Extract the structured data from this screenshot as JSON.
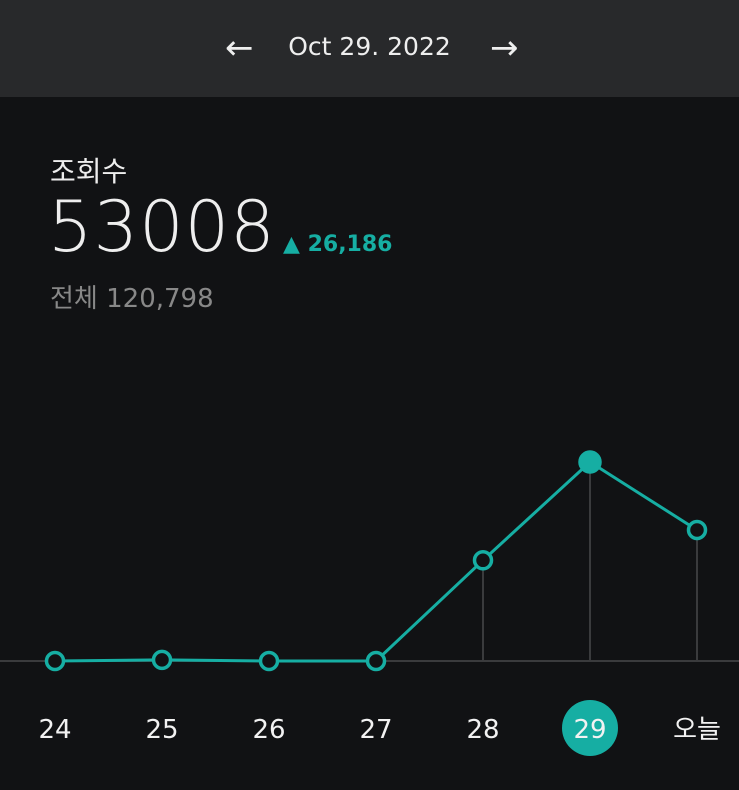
{
  "header": {
    "date": "Oct 29. 2022",
    "prev_icon": "arrow-left-icon",
    "next_icon": "arrow-right-icon"
  },
  "stats": {
    "label": "조회수",
    "value": "53008",
    "delta": "▲ 26,186",
    "total": "전체 120,798"
  },
  "colors": {
    "accent": "#16aea3",
    "background": "#111214",
    "header": "#28292b"
  },
  "chart_data": {
    "type": "line",
    "categories": [
      "24",
      "25",
      "26",
      "27",
      "28",
      "29",
      "오늘"
    ],
    "values": [
      0,
      300,
      0,
      0,
      26822,
      53008,
      34900
    ],
    "selected": "29",
    "ylim": [
      0,
      53008
    ],
    "grid": false
  }
}
